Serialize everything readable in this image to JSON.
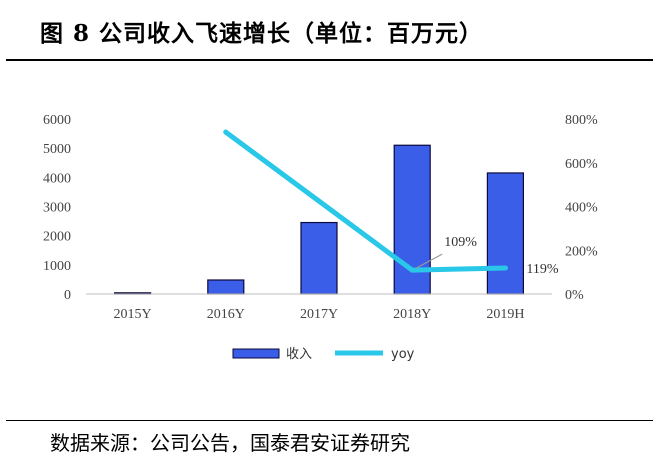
{
  "header": {
    "title": "图 8 公司收入飞速增长（单位：百万元）"
  },
  "footer": {
    "source": "数据来源：公司公告，国泰君安证券研究"
  },
  "chart_data": {
    "type": "bar",
    "categories": [
      "2015Y",
      "2016Y",
      "2017Y",
      "2018Y",
      "2019H"
    ],
    "series": [
      {
        "name": "收入",
        "type": "bar",
        "axis": "left",
        "color": "#3b5ee8",
        "values": [
          40,
          480,
          2450,
          5100,
          4150
        ]
      },
      {
        "name": "yoy",
        "type": "line",
        "axis": "right",
        "color": "#29c7e8",
        "values": [
          null,
          740,
          null,
          109,
          119
        ]
      }
    ],
    "y_left": {
      "min": 0,
      "max": 6000,
      "ticks": [
        0,
        1000,
        2000,
        3000,
        4000,
        5000,
        6000
      ]
    },
    "y_right": {
      "min": 0,
      "max": 800,
      "ticks": [
        "0%",
        "200%",
        "400%",
        "600%",
        "800%"
      ]
    },
    "annotations": [
      {
        "text": "109%",
        "category": "2018Y",
        "value": 109
      },
      {
        "text": "119%",
        "category": "2019H",
        "value": 119
      }
    ],
    "legend": {
      "placement": "bottom"
    },
    "grid": false
  }
}
